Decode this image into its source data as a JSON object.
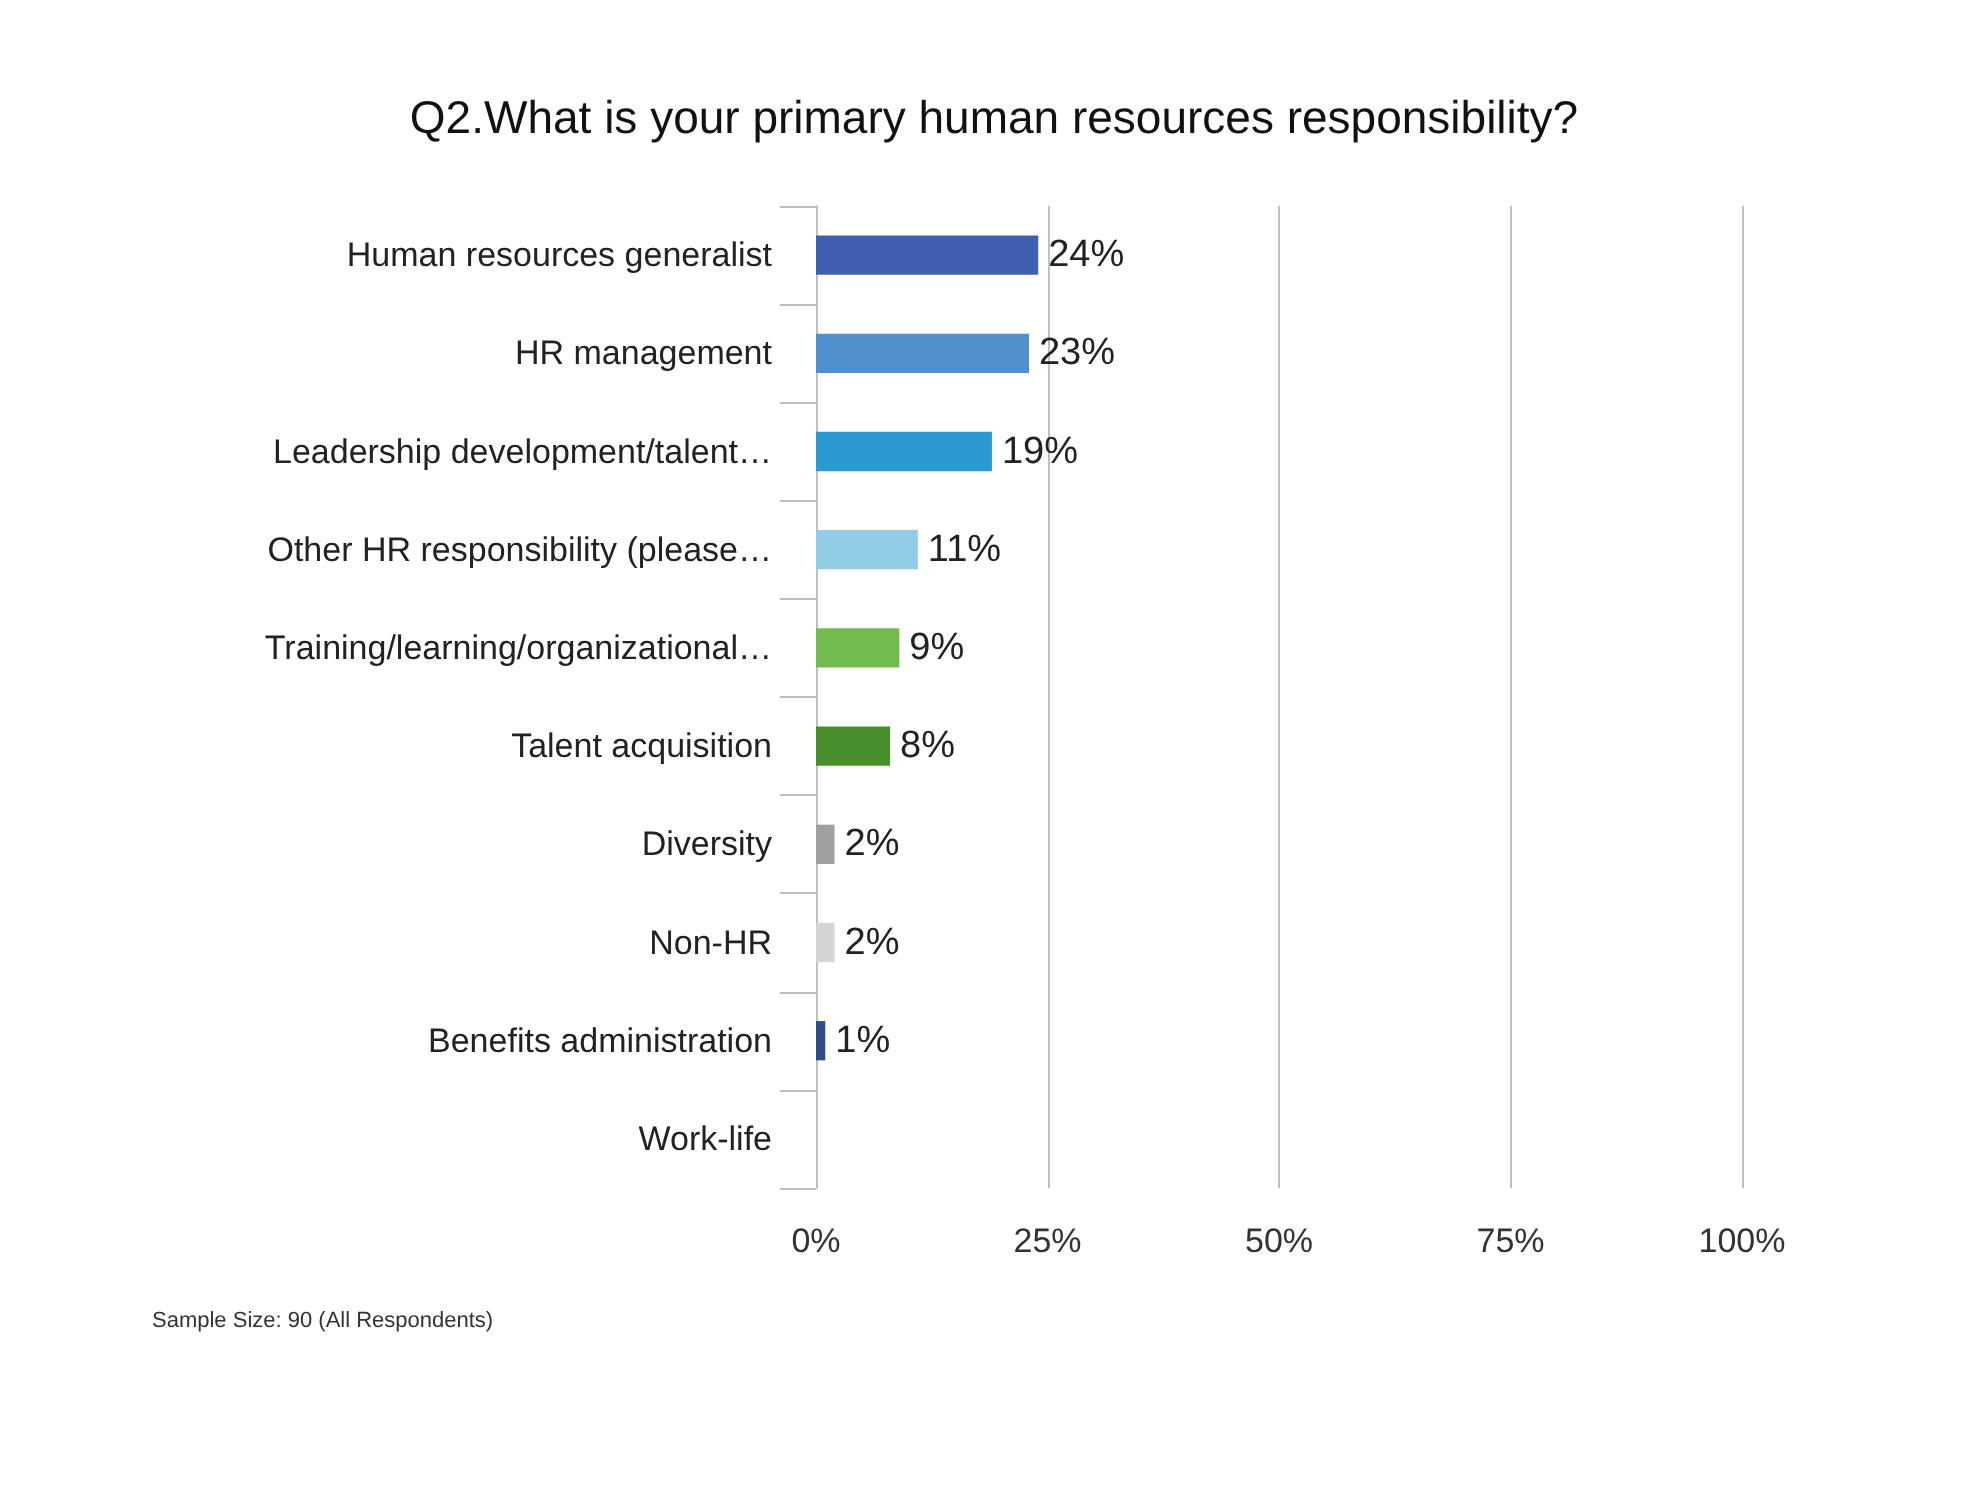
{
  "chart_data": {
    "type": "bar",
    "orientation": "horizontal",
    "title": "Q2.What is your primary human resources responsibility?",
    "categories": [
      "Human resources generalist",
      "HR management",
      "Leadership development/talent…",
      "Other HR responsibility (please…",
      "Training/learning/organizational…",
      "Talent acquisition",
      "Diversity",
      "Non-HR",
      "Benefits administration",
      "Work-life"
    ],
    "values": [
      24,
      23,
      19,
      11,
      9,
      8,
      2,
      2,
      1,
      0
    ],
    "value_labels": [
      "24%",
      "23%",
      "19%",
      "11%",
      "9%",
      "8%",
      "2%",
      "2%",
      "1%",
      null
    ],
    "colors": [
      "#3f5fb0",
      "#4f8fcc",
      "#2a9ad0",
      "#92cde8",
      "#72bb4f",
      "#4a8f2e",
      "#a0a0a0",
      "#d4d4d4",
      "#2f4d8a",
      "#3f5fb0"
    ],
    "xlim": [
      0,
      100
    ],
    "xticks": [
      {
        "value": 0,
        "label": "0%"
      },
      {
        "value": 25,
        "label": "25%"
      },
      {
        "value": 50,
        "label": "50%"
      },
      {
        "value": 75,
        "label": "75%"
      },
      {
        "value": 100,
        "label": "100%"
      }
    ],
    "grid": "x",
    "annotations": [
      "Sample Size: 90 (All Respondents)"
    ]
  }
}
